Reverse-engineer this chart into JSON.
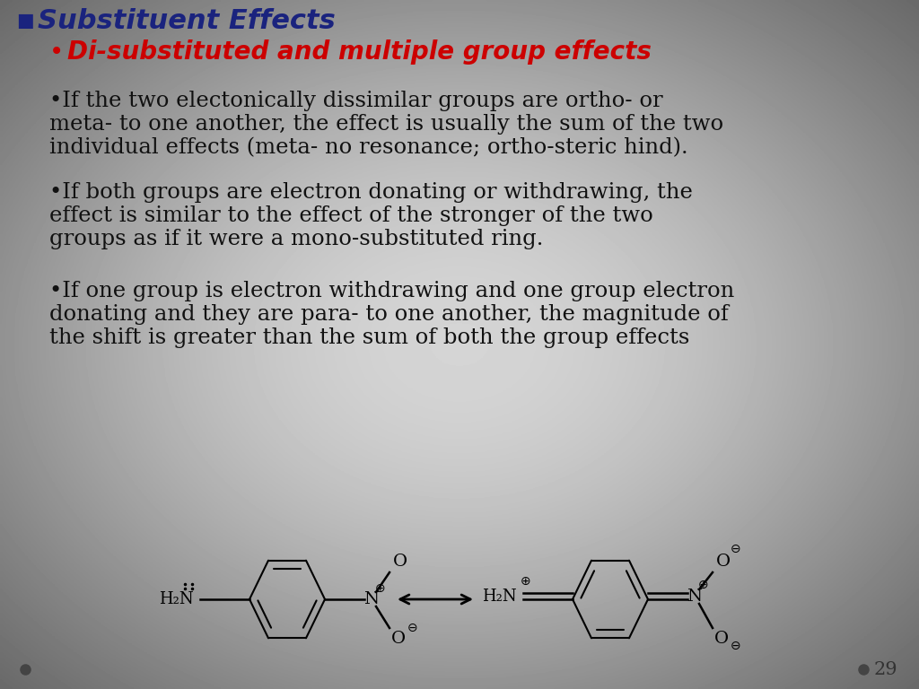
{
  "bg_color": "#d8d8d8",
  "title": "Substituent Effects",
  "title_color": "#1a237e",
  "subtitle": "Di-substituted and multiple group effects",
  "subtitle_color": "#cc0000",
  "bullet1_line1": "•If the two electonically dissimilar groups are ortho- or",
  "bullet1_line2": "meta- to one another, the effect is usually the sum of the two",
  "bullet1_line3": "individual effects (meta- no resonance; ortho-steric hind).",
  "bullet2_line1": "•If both groups are electron donating or withdrawing, the",
  "bullet2_line2": "effect is similar to the effect of the stronger of the two",
  "bullet2_line3": "groups as if it were a mono-substituted ring.",
  "bullet3_line1": "•If one group is electron withdrawing and one group electron",
  "bullet3_line2": "donating and they are para- to one another, the magnitude of",
  "bullet3_line3": "the shift is greater than the sum of both the group effects",
  "text_color": "#111111",
  "page_num": "29",
  "header_bullet_color": "#1a237e"
}
